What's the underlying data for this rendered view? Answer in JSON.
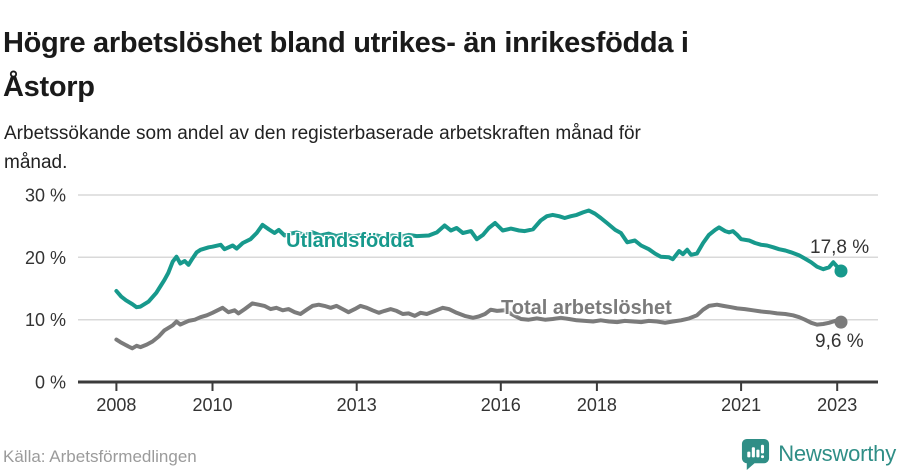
{
  "header": {
    "title_lines": [
      "Högre arbetslöshet bland utrikes- än inrikesfödda i",
      "Åstorp"
    ],
    "subtitle_lines": [
      "Arbetssökande som andel av den registerbaserade arbetskraften månad för",
      "månad."
    ]
  },
  "footer": {
    "source": "Källa: Arbetsförmedlingen",
    "logo_text": "Newsworthy",
    "logo_icon": "bar-chart-bubble-icon"
  },
  "colors": {
    "accent_teal": "#17998c",
    "line_gray": "#7b7b7b",
    "text_dark": "#1a1a1a",
    "logo_teal": "#2f8e86"
  },
  "chart_data": {
    "type": "line",
    "title": "Högre arbetslöshet bland utrikes- än inrikesfödda i Åstorp",
    "xlabel": "",
    "ylabel": "",
    "xlim": [
      2007.2,
      2023.85
    ],
    "ylim": [
      0,
      32.4
    ],
    "grid": "horizontal",
    "grid_color": "#d9d9d9",
    "axis_color": "#3b3b3b",
    "legend_position": "inline-labels",
    "yticks": [
      {
        "value": 0,
        "label": "0 %"
      },
      {
        "value": 10,
        "label": "10 %"
      },
      {
        "value": 20,
        "label": "20 %"
      },
      {
        "value": 30,
        "label": "30 %"
      }
    ],
    "xticks": [
      {
        "value": 2008,
        "label": "2008"
      },
      {
        "value": 2010,
        "label": "2010"
      },
      {
        "value": 2013,
        "label": "2013"
      },
      {
        "value": 2016,
        "label": "2016"
      },
      {
        "value": 2018,
        "label": "2018"
      },
      {
        "value": 2021,
        "label": "2021"
      },
      {
        "value": 2023,
        "label": "2023"
      }
    ],
    "series": [
      {
        "key": "utlandsfodda",
        "name": "Utlandsfödda",
        "color": "#17998c",
        "end_label": "17,8 %",
        "end_value": 17.8,
        "points": [
          [
            2008,
            14.6
          ],
          [
            2008.1,
            13.7
          ],
          [
            2008.2,
            13.1
          ],
          [
            2008.33,
            12.5
          ],
          [
            2008.42,
            12
          ],
          [
            2008.5,
            12.1
          ],
          [
            2008.67,
            12.9
          ],
          [
            2008.83,
            14.3
          ],
          [
            2008.92,
            15.4
          ],
          [
            2009,
            16.4
          ],
          [
            2009.08,
            17.5
          ],
          [
            2009.17,
            19.3
          ],
          [
            2009.25,
            20.1
          ],
          [
            2009.33,
            19
          ],
          [
            2009.42,
            19.4
          ],
          [
            2009.5,
            18.8
          ],
          [
            2009.58,
            19.8
          ],
          [
            2009.67,
            20.8
          ],
          [
            2009.75,
            21.2
          ],
          [
            2009.92,
            21.6
          ],
          [
            2010,
            21.7
          ],
          [
            2010.17,
            22
          ],
          [
            2010.25,
            21.3
          ],
          [
            2010.42,
            21.9
          ],
          [
            2010.5,
            21.4
          ],
          [
            2010.63,
            22.3
          ],
          [
            2010.79,
            22.9
          ],
          [
            2010.92,
            23.9
          ],
          [
            2011.04,
            25.2
          ],
          [
            2011.17,
            24.5
          ],
          [
            2011.29,
            23.9
          ],
          [
            2011.38,
            24.4
          ],
          [
            2011.5,
            23.5
          ],
          [
            2011.63,
            23.8
          ],
          [
            2011.75,
            24
          ],
          [
            2011.92,
            23.6
          ],
          [
            2012.08,
            24
          ],
          [
            2012.25,
            23.5
          ],
          [
            2012.42,
            23.8
          ],
          [
            2012.58,
            23.4
          ],
          [
            2012.75,
            23.7
          ],
          [
            2012.92,
            23.3
          ],
          [
            2013.08,
            23.6
          ],
          [
            2013.25,
            23.3
          ],
          [
            2013.42,
            23.5
          ],
          [
            2013.58,
            23.2
          ],
          [
            2013.75,
            23.5
          ],
          [
            2013.92,
            23.3
          ],
          [
            2014.08,
            23.6
          ],
          [
            2014.25,
            23.4
          ],
          [
            2014.5,
            23.5
          ],
          [
            2014.67,
            24
          ],
          [
            2014.83,
            25.1
          ],
          [
            2014.96,
            24.3
          ],
          [
            2015.08,
            24.7
          ],
          [
            2015.21,
            23.9
          ],
          [
            2015.38,
            24.2
          ],
          [
            2015.5,
            22.9
          ],
          [
            2015.63,
            23.6
          ],
          [
            2015.75,
            24.7
          ],
          [
            2015.88,
            25.5
          ],
          [
            2016.04,
            24.3
          ],
          [
            2016.21,
            24.6
          ],
          [
            2016.38,
            24.3
          ],
          [
            2016.5,
            24.2
          ],
          [
            2016.67,
            24.5
          ],
          [
            2016.83,
            25.9
          ],
          [
            2016.96,
            26.6
          ],
          [
            2017.08,
            26.8
          ],
          [
            2017.21,
            26.6
          ],
          [
            2017.33,
            26.3
          ],
          [
            2017.46,
            26.6
          ],
          [
            2017.58,
            26.8
          ],
          [
            2017.71,
            27.2
          ],
          [
            2017.83,
            27.5
          ],
          [
            2017.96,
            27
          ],
          [
            2018.08,
            26.3
          ],
          [
            2018.21,
            25.5
          ],
          [
            2018.38,
            24.4
          ],
          [
            2018.5,
            23.9
          ],
          [
            2018.63,
            22.4
          ],
          [
            2018.79,
            22.7
          ],
          [
            2018.92,
            21.9
          ],
          [
            2019.08,
            21.3
          ],
          [
            2019.21,
            20.6
          ],
          [
            2019.33,
            20.1
          ],
          [
            2019.5,
            20
          ],
          [
            2019.58,
            19.7
          ],
          [
            2019.71,
            21
          ],
          [
            2019.79,
            20.5
          ],
          [
            2019.88,
            21.2
          ],
          [
            2019.96,
            20.4
          ],
          [
            2020.08,
            20.6
          ],
          [
            2020.21,
            22.3
          ],
          [
            2020.33,
            23.6
          ],
          [
            2020.46,
            24.4
          ],
          [
            2020.54,
            24.8
          ],
          [
            2020.67,
            24.2
          ],
          [
            2020.75,
            24
          ],
          [
            2020.83,
            24.2
          ],
          [
            2020.92,
            23.6
          ],
          [
            2021,
            22.9
          ],
          [
            2021.17,
            22.7
          ],
          [
            2021.29,
            22.3
          ],
          [
            2021.42,
            22
          ],
          [
            2021.54,
            21.9
          ],
          [
            2021.67,
            21.6
          ],
          [
            2021.79,
            21.3
          ],
          [
            2021.92,
            21.1
          ],
          [
            2022.04,
            20.8
          ],
          [
            2022.21,
            20.3
          ],
          [
            2022.33,
            19.8
          ],
          [
            2022.46,
            19.2
          ],
          [
            2022.58,
            18.5
          ],
          [
            2022.71,
            18.1
          ],
          [
            2022.83,
            18.4
          ],
          [
            2022.92,
            19.2
          ],
          [
            2023.08,
            17.8
          ]
        ]
      },
      {
        "key": "total",
        "name": "Total arbetslöshet",
        "color": "#7b7b7b",
        "end_label": "9,6 %",
        "end_value": 9.6,
        "points": [
          [
            2008,
            6.8
          ],
          [
            2008.08,
            6.4
          ],
          [
            2008.25,
            5.7
          ],
          [
            2008.33,
            5.4
          ],
          [
            2008.42,
            5.8
          ],
          [
            2008.5,
            5.6
          ],
          [
            2008.63,
            6
          ],
          [
            2008.75,
            6.5
          ],
          [
            2008.88,
            7.3
          ],
          [
            2009,
            8.3
          ],
          [
            2009.17,
            9.1
          ],
          [
            2009.25,
            9.7
          ],
          [
            2009.33,
            9.2
          ],
          [
            2009.5,
            9.8
          ],
          [
            2009.63,
            10
          ],
          [
            2009.75,
            10.4
          ],
          [
            2009.88,
            10.7
          ],
          [
            2010,
            11.1
          ],
          [
            2010.13,
            11.6
          ],
          [
            2010.21,
            11.9
          ],
          [
            2010.33,
            11.2
          ],
          [
            2010.46,
            11.5
          ],
          [
            2010.54,
            11
          ],
          [
            2010.67,
            11.7
          ],
          [
            2010.83,
            12.6
          ],
          [
            2010.96,
            12.4
          ],
          [
            2011.08,
            12.2
          ],
          [
            2011.21,
            11.7
          ],
          [
            2011.33,
            11.9
          ],
          [
            2011.46,
            11.5
          ],
          [
            2011.58,
            11.7
          ],
          [
            2011.71,
            11.2
          ],
          [
            2011.83,
            10.9
          ],
          [
            2011.96,
            11.6
          ],
          [
            2012.08,
            12.2
          ],
          [
            2012.21,
            12.4
          ],
          [
            2012.33,
            12.2
          ],
          [
            2012.46,
            11.9
          ],
          [
            2012.58,
            12.2
          ],
          [
            2012.71,
            11.7
          ],
          [
            2012.83,
            11.2
          ],
          [
            2012.96,
            11.7
          ],
          [
            2013.08,
            12.2
          ],
          [
            2013.21,
            11.9
          ],
          [
            2013.33,
            11.5
          ],
          [
            2013.46,
            11.1
          ],
          [
            2013.58,
            11.4
          ],
          [
            2013.71,
            11.7
          ],
          [
            2013.83,
            11.4
          ],
          [
            2013.96,
            10.9
          ],
          [
            2014.08,
            11
          ],
          [
            2014.21,
            10.6
          ],
          [
            2014.33,
            11.1
          ],
          [
            2014.46,
            10.9
          ],
          [
            2014.63,
            11.4
          ],
          [
            2014.79,
            11.9
          ],
          [
            2014.92,
            11.7
          ],
          [
            2015.08,
            11.1
          ],
          [
            2015.25,
            10.6
          ],
          [
            2015.42,
            10.3
          ],
          [
            2015.54,
            10.5
          ],
          [
            2015.67,
            10.9
          ],
          [
            2015.79,
            11.6
          ],
          [
            2015.92,
            11.4
          ],
          [
            2016.08,
            11.5
          ],
          [
            2016.25,
            10.8
          ],
          [
            2016.42,
            10.1
          ],
          [
            2016.58,
            10
          ],
          [
            2016.75,
            10.2
          ],
          [
            2016.92,
            10
          ],
          [
            2017.08,
            10.1
          ],
          [
            2017.25,
            10.3
          ],
          [
            2017.42,
            10.1
          ],
          [
            2017.58,
            9.9
          ],
          [
            2017.75,
            9.8
          ],
          [
            2017.92,
            9.7
          ],
          [
            2018.08,
            9.9
          ],
          [
            2018.25,
            9.7
          ],
          [
            2018.42,
            9.6
          ],
          [
            2018.58,
            9.8
          ],
          [
            2018.75,
            9.7
          ],
          [
            2018.92,
            9.6
          ],
          [
            2019.08,
            9.8
          ],
          [
            2019.25,
            9.7
          ],
          [
            2019.42,
            9.5
          ],
          [
            2019.58,
            9.7
          ],
          [
            2019.75,
            9.9
          ],
          [
            2019.92,
            10.2
          ],
          [
            2020.08,
            10.7
          ],
          [
            2020.21,
            11.6
          ],
          [
            2020.33,
            12.2
          ],
          [
            2020.5,
            12.4
          ],
          [
            2020.63,
            12.2
          ],
          [
            2020.79,
            12
          ],
          [
            2020.92,
            11.8
          ],
          [
            2021.08,
            11.7
          ],
          [
            2021.25,
            11.5
          ],
          [
            2021.42,
            11.3
          ],
          [
            2021.58,
            11.2
          ],
          [
            2021.75,
            11
          ],
          [
            2021.92,
            10.9
          ],
          [
            2022.08,
            10.7
          ],
          [
            2022.21,
            10.4
          ],
          [
            2022.33,
            10
          ],
          [
            2022.46,
            9.5
          ],
          [
            2022.58,
            9.2
          ],
          [
            2022.71,
            9.3
          ],
          [
            2022.83,
            9.5
          ],
          [
            2022.96,
            9.8
          ],
          [
            2023.08,
            9.6
          ]
        ]
      }
    ]
  }
}
